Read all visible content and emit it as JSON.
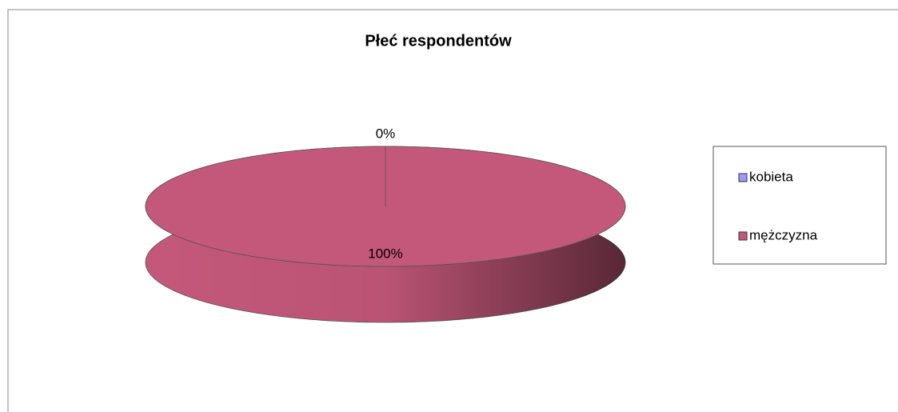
{
  "chart_data": {
    "type": "pie",
    "title": "Płeć respondentów",
    "categories": [
      "kobieta",
      "mężczyzna"
    ],
    "values": [
      0,
      100
    ],
    "value_labels": [
      "0%",
      "100%"
    ],
    "colors": [
      "#9999ff",
      "#c4587a"
    ],
    "legend": "right"
  }
}
